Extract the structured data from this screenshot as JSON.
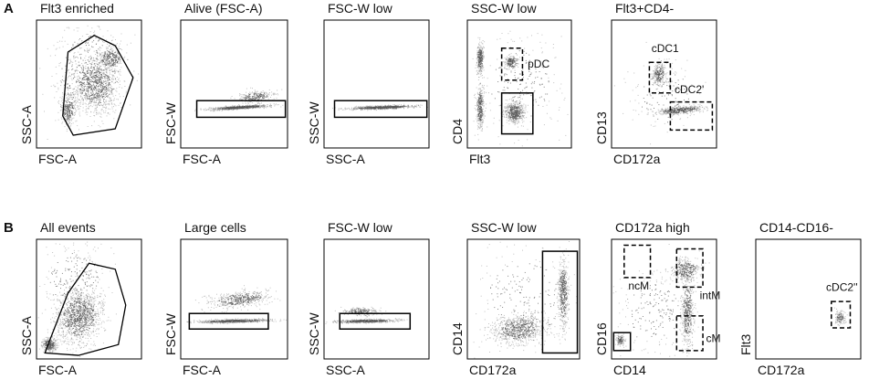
{
  "rows": [
    {
      "label": "A",
      "panels": [
        {
          "title": "Flt3 enriched",
          "x_label": "FSC-A",
          "y_label": "SSC-A",
          "gates": []
        },
        {
          "title": "Alive (FSC-A)",
          "x_label": "FSC-A",
          "y_label": "FSC-W",
          "gates": []
        },
        {
          "title": "FSC-W low",
          "x_label": "SSC-A",
          "y_label": "SSC-W",
          "gates": []
        },
        {
          "title": "SSC-W low",
          "x_label": "Flt3",
          "y_label": "CD4",
          "gates": [
            "pDC"
          ]
        },
        {
          "title": "Flt3+CD4-",
          "x_label": "CD172a",
          "y_label": "CD13",
          "gates": [
            "cDC1",
            "cDC2'"
          ]
        }
      ]
    },
    {
      "label": "B",
      "panels": [
        {
          "title": "All events",
          "x_label": "FSC-A",
          "y_label": "SSC-A",
          "gates": []
        },
        {
          "title": "Large cells",
          "x_label": "FSC-A",
          "y_label": "FSC-W",
          "gates": []
        },
        {
          "title": "FSC-W low",
          "x_label": "SSC-A",
          "y_label": "SSC-W",
          "gates": []
        },
        {
          "title": "SSC-W low",
          "x_label": "CD172a",
          "y_label": "CD14",
          "gates": []
        },
        {
          "title": "CD172a high",
          "x_label": "CD14",
          "y_label": "CD16",
          "gates": [
            "ncM",
            "intM",
            "cM"
          ]
        },
        {
          "title": "CD14-CD16-",
          "x_label": "CD172a",
          "y_label": "Flt3",
          "gates": [
            "cDC2''"
          ]
        }
      ]
    }
  ]
}
